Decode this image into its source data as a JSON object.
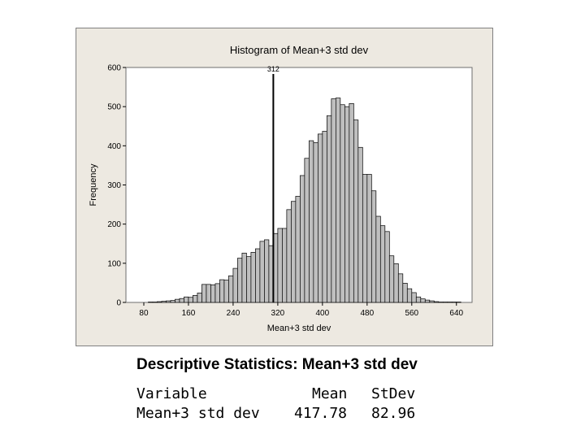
{
  "chart_data": {
    "type": "bar",
    "title": "Histogram of Mean+3 std dev",
    "xlabel": "Mean+3 std dev",
    "ylabel": "Frequency",
    "xlim": [
      48,
      668
    ],
    "ylim": [
      0,
      600
    ],
    "bin_width": 8,
    "xticks": [
      80,
      160,
      240,
      320,
      400,
      480,
      560,
      640
    ],
    "yticks": [
      0,
      100,
      200,
      300,
      400,
      500,
      600
    ],
    "reference_line": {
      "x": 312,
      "label": "312"
    },
    "bins": [
      {
        "x": 92,
        "value": 1
      },
      {
        "x": 100,
        "value": 1
      },
      {
        "x": 108,
        "value": 2
      },
      {
        "x": 116,
        "value": 3
      },
      {
        "x": 124,
        "value": 4
      },
      {
        "x": 132,
        "value": 5
      },
      {
        "x": 140,
        "value": 8
      },
      {
        "x": 148,
        "value": 10
      },
      {
        "x": 156,
        "value": 14
      },
      {
        "x": 164,
        "value": 13
      },
      {
        "x": 172,
        "value": 18
      },
      {
        "x": 180,
        "value": 24
      },
      {
        "x": 188,
        "value": 46
      },
      {
        "x": 196,
        "value": 46
      },
      {
        "x": 204,
        "value": 45
      },
      {
        "x": 212,
        "value": 48
      },
      {
        "x": 220,
        "value": 58
      },
      {
        "x": 228,
        "value": 57
      },
      {
        "x": 236,
        "value": 68
      },
      {
        "x": 244,
        "value": 87
      },
      {
        "x": 252,
        "value": 113
      },
      {
        "x": 260,
        "value": 126
      },
      {
        "x": 268,
        "value": 117
      },
      {
        "x": 276,
        "value": 128
      },
      {
        "x": 284,
        "value": 137
      },
      {
        "x": 292,
        "value": 156
      },
      {
        "x": 300,
        "value": 160
      },
      {
        "x": 308,
        "value": 145
      },
      {
        "x": 316,
        "value": 176
      },
      {
        "x": 324,
        "value": 189
      },
      {
        "x": 332,
        "value": 189
      },
      {
        "x": 340,
        "value": 237
      },
      {
        "x": 348,
        "value": 258
      },
      {
        "x": 356,
        "value": 271
      },
      {
        "x": 364,
        "value": 324
      },
      {
        "x": 372,
        "value": 368
      },
      {
        "x": 380,
        "value": 413
      },
      {
        "x": 388,
        "value": 408
      },
      {
        "x": 396,
        "value": 430
      },
      {
        "x": 404,
        "value": 437
      },
      {
        "x": 412,
        "value": 477
      },
      {
        "x": 420,
        "value": 520
      },
      {
        "x": 428,
        "value": 522
      },
      {
        "x": 436,
        "value": 505
      },
      {
        "x": 444,
        "value": 500
      },
      {
        "x": 452,
        "value": 508
      },
      {
        "x": 460,
        "value": 466
      },
      {
        "x": 468,
        "value": 396
      },
      {
        "x": 476,
        "value": 327
      },
      {
        "x": 484,
        "value": 327
      },
      {
        "x": 492,
        "value": 285
      },
      {
        "x": 500,
        "value": 220
      },
      {
        "x": 508,
        "value": 196
      },
      {
        "x": 516,
        "value": 181
      },
      {
        "x": 524,
        "value": 119
      },
      {
        "x": 532,
        "value": 99
      },
      {
        "x": 540,
        "value": 73
      },
      {
        "x": 548,
        "value": 49
      },
      {
        "x": 556,
        "value": 35
      },
      {
        "x": 564,
        "value": 25
      },
      {
        "x": 572,
        "value": 14
      },
      {
        "x": 580,
        "value": 9
      },
      {
        "x": 588,
        "value": 6
      },
      {
        "x": 596,
        "value": 4
      },
      {
        "x": 604,
        "value": 2
      },
      {
        "x": 612,
        "value": 1
      },
      {
        "x": 620,
        "value": 1
      },
      {
        "x": 628,
        "value": 1
      },
      {
        "x": 636,
        "value": 1
      },
      {
        "x": 644,
        "value": 1
      }
    ]
  },
  "stats": {
    "heading": "Descriptive Statistics: Mean+3 std dev",
    "header": {
      "variable": "Variable",
      "mean": "Mean",
      "stdev": "StDev"
    },
    "row": {
      "variable": "Mean+3 std dev",
      "mean": "417.78",
      "stdev": "82.96"
    }
  },
  "colors": {
    "frame_background": "#ede9e1",
    "plot_background": "#ffffff",
    "bar_fill": "#bfbfbf",
    "bar_edge": "#000000",
    "reference_line": "#000000"
  }
}
